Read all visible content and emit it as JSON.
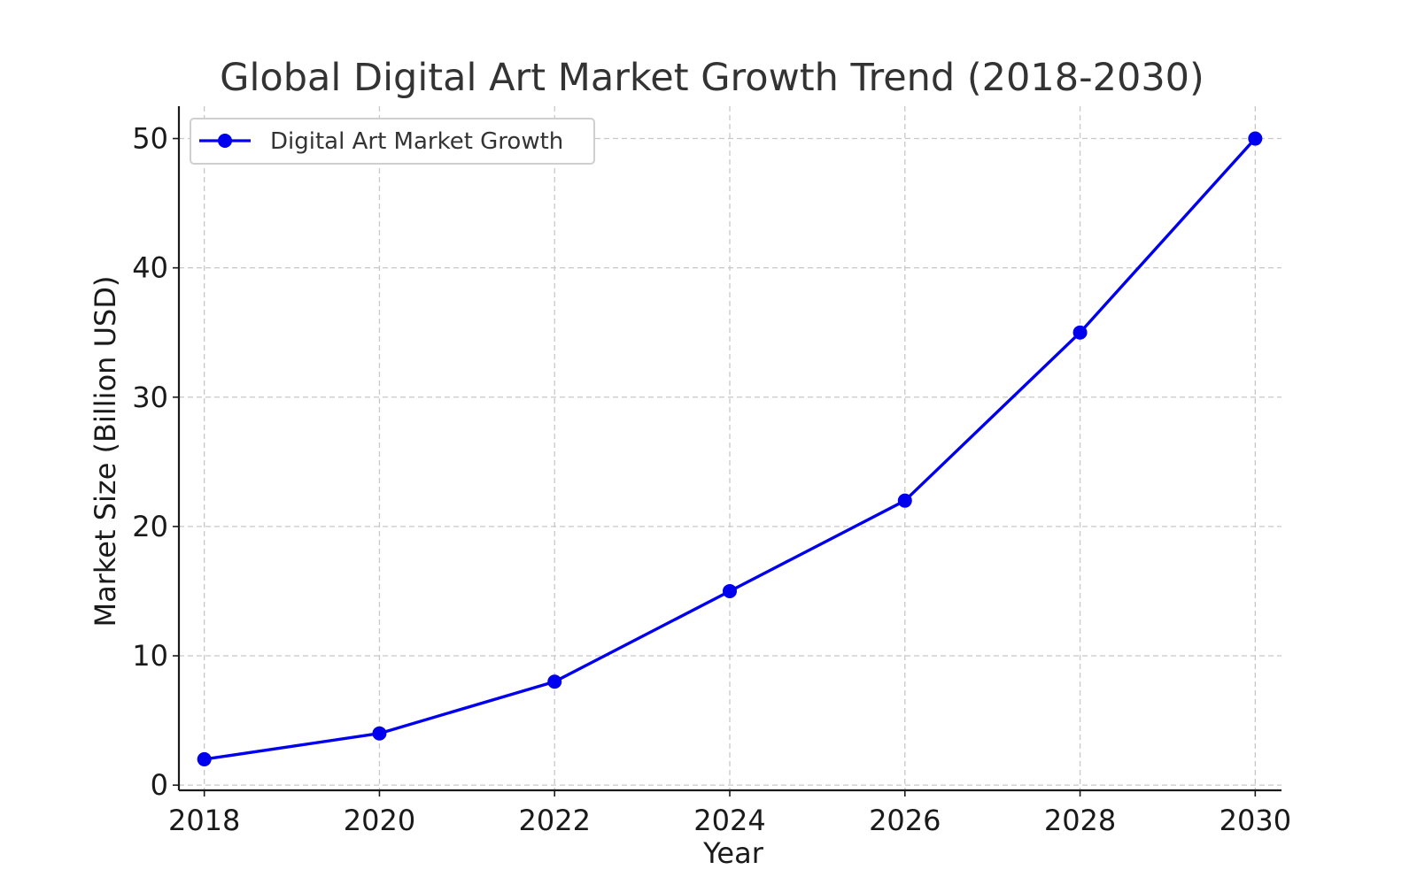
{
  "chart_data": {
    "type": "line",
    "title": "Global Digital Art Market Growth Trend (2018-2030)",
    "xlabel": "Year",
    "ylabel": "Market Size (Billion USD)",
    "x": [
      2018,
      2020,
      2022,
      2024,
      2026,
      2028,
      2030
    ],
    "xticks": [
      "2018",
      "2020",
      "2022",
      "2024",
      "2026",
      "2028",
      "2030"
    ],
    "yticks": [
      "0",
      "10",
      "20",
      "30",
      "40",
      "50"
    ],
    "xlim": [
      2017.71,
      2030.3
    ],
    "ylim": [
      -0.4,
      52.5
    ],
    "grid": true,
    "legend_position": "top-left",
    "series": [
      {
        "name": "Digital Art Market Growth",
        "color": "#0000ee",
        "marker": "circle",
        "values": [
          2,
          4,
          8,
          15,
          22,
          35,
          50
        ]
      }
    ]
  }
}
